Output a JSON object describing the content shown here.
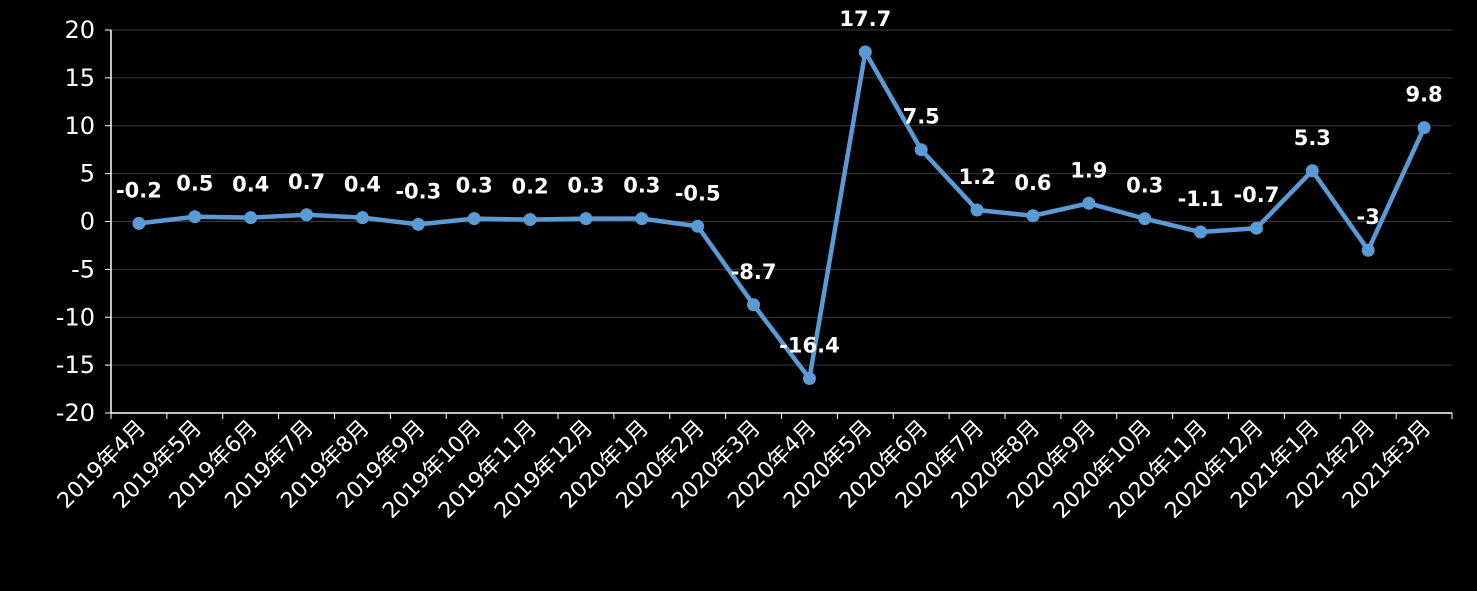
{
  "chart_data": {
    "type": "line",
    "title": "",
    "xlabel": "",
    "ylabel": "",
    "ylim": [
      -20,
      20
    ],
    "yticks": [
      -20,
      -15,
      -10,
      -5,
      0,
      5,
      10,
      15,
      20
    ],
    "grid": true,
    "legend": "none",
    "categories": [
      "2019年4月",
      "2019年5月",
      "2019年6月",
      "2019年7月",
      "2019年8月",
      "2019年9月",
      "2019年10月",
      "2019年11月",
      "2019年12月",
      "2020年1月",
      "2020年2月",
      "2020年3月",
      "2020年4月",
      "2020年5月",
      "2020年6月",
      "2020年7月",
      "2020年8月",
      "2020年9月",
      "2020年10月",
      "2020年11月",
      "2020年12月",
      "2021年1月",
      "2021年2月",
      "2021年3月"
    ],
    "series": [
      {
        "color": "#5b9bd5",
        "values": [
          -0.2,
          0.5,
          0.4,
          0.7,
          0.4,
          -0.3,
          0.3,
          0.2,
          0.3,
          0.3,
          -0.5,
          -8.7,
          -16.4,
          17.7,
          7.5,
          1.2,
          0.6,
          1.9,
          0.3,
          -1.1,
          -0.7,
          5.3,
          -3,
          9.8
        ],
        "labels": [
          "-0.2",
          "0.5",
          "0.4",
          "0.7",
          "0.4",
          "-0.3",
          "0.3",
          "0.2",
          "0.3",
          "0.3",
          "-0.5",
          "-8.7",
          "-16.4",
          "17.7",
          "7.5",
          "1.2",
          "0.6",
          "1.9",
          "0.3",
          "-1.1",
          "-0.7",
          "5.3",
          "-3",
          "9.8"
        ]
      }
    ],
    "colors": {
      "background": "#000000",
      "grid": "#3a3a3a",
      "axis": "#ffffff",
      "text": "#ffffff",
      "line": "#5b9bd5"
    }
  }
}
